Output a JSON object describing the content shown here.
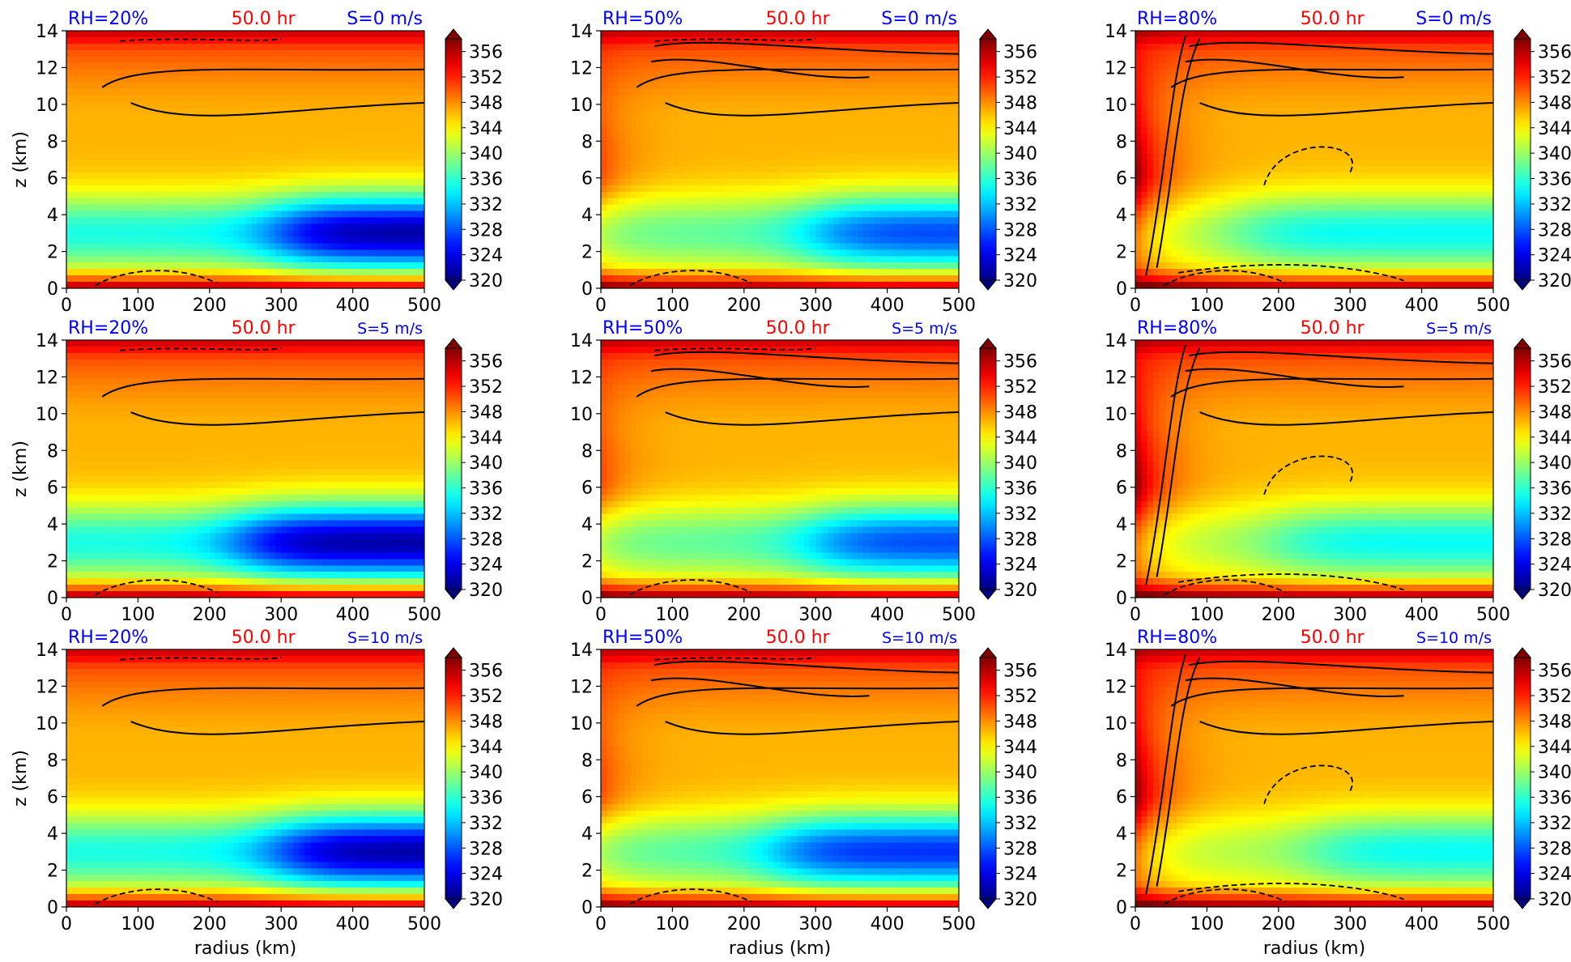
{
  "figure": {
    "xlabel": "radius (km)",
    "ylabel": "z (km)",
    "time_label": "50.0 hr",
    "colors": {
      "label_blue": "#0000ff",
      "label_red": "#ff0000",
      "contour": "#000000"
    }
  },
  "chart_data": {
    "type": "heatmap",
    "xlabel": "radius (km)",
    "ylabel": "z (km)",
    "xlim": [
      0,
      500
    ],
    "ylim": [
      0,
      14
    ],
    "x_ticks": [
      0,
      100,
      200,
      300,
      400,
      500
    ],
    "y_ticks": [
      0,
      2,
      4,
      6,
      8,
      10,
      12,
      14
    ],
    "colorbar": {
      "colormap": "jet",
      "extend": "both",
      "range": [
        320,
        358
      ],
      "tick_values": [
        320,
        324,
        328,
        332,
        336,
        340,
        344,
        348,
        352,
        356
      ]
    },
    "rows": [
      {
        "shear_label": "S=0 m/s",
        "shear_mps": 0
      },
      {
        "shear_label": "S=5 m/s",
        "shear_mps": 5
      },
      {
        "shear_label": "S=10 m/s",
        "shear_mps": 10
      }
    ],
    "columns": [
      {
        "rh_label": "RH=20%",
        "rh_percent": 20
      },
      {
        "rh_label": "RH=50%",
        "rh_percent": 50
      },
      {
        "rh_label": "RH=80%",
        "rh_percent": 80
      }
    ],
    "panels": [
      {
        "rh_label": "RH=20%",
        "time_label": "50.0 hr",
        "shear_label": "S=0 m/s",
        "rh": 20,
        "shear": 0,
        "min_value": 321,
        "min_height_km": 3.0,
        "min_from_radius_km": 300
      },
      {
        "rh_label": "RH=50%",
        "time_label": "50.0 hr",
        "shear_label": "S=0 m/s",
        "rh": 50,
        "shear": 0,
        "min_value": 327,
        "min_height_km": 3.0,
        "min_from_radius_km": 300
      },
      {
        "rh_label": "RH=80%",
        "time_label": "50.0 hr",
        "shear_label": "S=0 m/s",
        "rh": 80,
        "shear": 0,
        "min_value": 334,
        "min_height_km": 3.0,
        "min_from_radius_km": 150
      },
      {
        "rh_label": "RH=20%",
        "time_label": "50.0 hr",
        "shear_label": "S=5 m/s",
        "rh": 20,
        "shear": 5,
        "min_value": 321,
        "min_height_km": 3.0,
        "min_from_radius_km": 250
      },
      {
        "rh_label": "RH=50%",
        "time_label": "50.0 hr",
        "shear_label": "S=5 m/s",
        "rh": 50,
        "shear": 5,
        "min_value": 327,
        "min_height_km": 3.0,
        "min_from_radius_km": 300
      },
      {
        "rh_label": "RH=80%",
        "time_label": "50.0 hr",
        "shear_label": "S=5 m/s",
        "rh": 80,
        "shear": 5,
        "min_value": 334,
        "min_height_km": 3.0,
        "min_from_radius_km": 200
      },
      {
        "rh_label": "RH=20%",
        "time_label": "50.0 hr",
        "shear_label": "S=10 m/s",
        "rh": 20,
        "shear": 10,
        "min_value": 321,
        "min_height_km": 3.0,
        "min_from_radius_km": 300
      },
      {
        "rh_label": "RH=50%",
        "time_label": "50.0 hr",
        "shear_label": "S=10 m/s",
        "rh": 50,
        "shear": 10,
        "min_value": 326,
        "min_height_km": 3.0,
        "min_from_radius_km": 250
      },
      {
        "rh_label": "RH=80%",
        "time_label": "50.0 hr",
        "shear_label": "S=10 m/s",
        "rh": 80,
        "shear": 10,
        "min_value": 334,
        "min_height_km": 3.0,
        "min_from_radius_km": 250
      }
    ]
  }
}
